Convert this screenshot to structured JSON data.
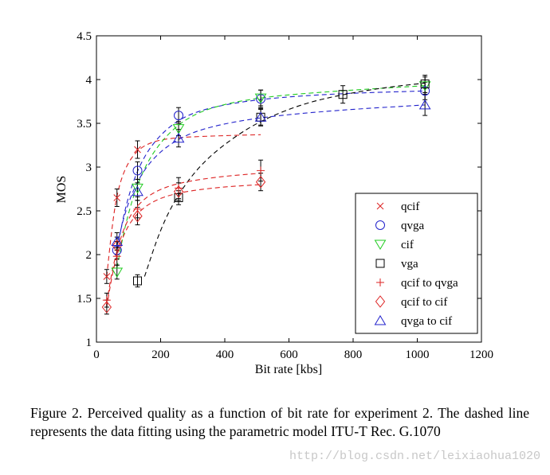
{
  "chart_data": {
    "type": "scatter",
    "title": "",
    "xlabel": "Bit rate [kbs]",
    "ylabel": "MOS",
    "xlim": [
      0,
      1200
    ],
    "ylim": [
      1,
      4.5
    ],
    "xticks": [
      0,
      200,
      400,
      600,
      800,
      1000,
      1200
    ],
    "yticks": [
      1,
      1.5,
      2,
      2.5,
      3,
      3.5,
      4,
      4.5
    ],
    "xtick_labels": [
      "0",
      "200",
      "400",
      "600",
      "800",
      "1000",
      "1200"
    ],
    "ytick_labels": [
      "1",
      "1.5",
      "2",
      "2.5",
      "3",
      "3.5",
      "4",
      "4.5"
    ],
    "grid": false,
    "legend_position": "bottom-right",
    "series": [
      {
        "name": "qcif",
        "marker": "x",
        "color": "#dd2222",
        "points": [
          {
            "x": 32,
            "y": 1.75,
            "err": 0.08
          },
          {
            "x": 64,
            "y": 2.65,
            "err": 0.1
          },
          {
            "x": 128,
            "y": 3.2,
            "err": 0.1
          }
        ],
        "fit": [
          {
            "x": 32,
            "y": 1.75
          },
          {
            "x": 48,
            "y": 2.3
          },
          {
            "x": 64,
            "y": 2.7
          },
          {
            "x": 90,
            "y": 3.0
          },
          {
            "x": 128,
            "y": 3.2
          },
          {
            "x": 180,
            "y": 3.3
          },
          {
            "x": 256,
            "y": 3.34
          },
          {
            "x": 400,
            "y": 3.36
          },
          {
            "x": 512,
            "y": 3.37
          }
        ]
      },
      {
        "name": "qvga",
        "marker": "o",
        "color": "#2222cc",
        "points": [
          {
            "x": 64,
            "y": 2.05,
            "err": 0.1
          },
          {
            "x": 128,
            "y": 2.96,
            "err": 0.1
          },
          {
            "x": 256,
            "y": 3.59,
            "err": 0.09
          },
          {
            "x": 512,
            "y": 3.78,
            "err": 0.1
          },
          {
            "x": 1024,
            "y": 3.87,
            "err": 0.1
          }
        ],
        "fit": [
          {
            "x": 64,
            "y": 2.05
          },
          {
            "x": 90,
            "y": 2.55
          },
          {
            "x": 128,
            "y": 2.98
          },
          {
            "x": 180,
            "y": 3.3
          },
          {
            "x": 256,
            "y": 3.55
          },
          {
            "x": 350,
            "y": 3.68
          },
          {
            "x": 512,
            "y": 3.78
          },
          {
            "x": 750,
            "y": 3.84
          },
          {
            "x": 1024,
            "y": 3.87
          }
        ]
      },
      {
        "name": "cif",
        "marker": "v",
        "color": "#22cc22",
        "points": [
          {
            "x": 64,
            "y": 1.8,
            "err": 0.08
          },
          {
            "x": 128,
            "y": 2.76,
            "err": 0.1
          },
          {
            "x": 256,
            "y": 3.44,
            "err": 0.08
          },
          {
            "x": 512,
            "y": 3.79,
            "err": 0.09
          },
          {
            "x": 1024,
            "y": 3.93,
            "err": 0.1
          }
        ],
        "fit": [
          {
            "x": 64,
            "y": 1.85
          },
          {
            "x": 90,
            "y": 2.35
          },
          {
            "x": 128,
            "y": 2.82
          },
          {
            "x": 180,
            "y": 3.2
          },
          {
            "x": 256,
            "y": 3.5
          },
          {
            "x": 350,
            "y": 3.68
          },
          {
            "x": 512,
            "y": 3.8
          },
          {
            "x": 750,
            "y": 3.87
          },
          {
            "x": 1024,
            "y": 3.93
          }
        ]
      },
      {
        "name": "vga",
        "marker": "s",
        "color": "#000000",
        "points": [
          {
            "x": 128,
            "y": 1.7,
            "err": 0.07
          },
          {
            "x": 256,
            "y": 2.65,
            "err": 0.08
          },
          {
            "x": 512,
            "y": 3.57,
            "err": 0.09
          },
          {
            "x": 768,
            "y": 3.83,
            "err": 0.1
          },
          {
            "x": 1024,
            "y": 3.95,
            "err": 0.1
          }
        ],
        "fit": [
          {
            "x": 150,
            "y": 1.75
          },
          {
            "x": 200,
            "y": 2.3
          },
          {
            "x": 256,
            "y": 2.7
          },
          {
            "x": 330,
            "y": 3.05
          },
          {
            "x": 420,
            "y": 3.32
          },
          {
            "x": 512,
            "y": 3.53
          },
          {
            "x": 640,
            "y": 3.72
          },
          {
            "x": 768,
            "y": 3.83
          },
          {
            "x": 900,
            "y": 3.91
          },
          {
            "x": 1024,
            "y": 3.96
          }
        ]
      },
      {
        "name": "qcif to qvga",
        "marker": "+",
        "color": "#dd2222",
        "points": [
          {
            "x": 32,
            "y": 1.48,
            "err": 0.08
          },
          {
            "x": 64,
            "y": 1.98,
            "err": 0.1
          },
          {
            "x": 128,
            "y": 2.52,
            "err": 0.1
          },
          {
            "x": 256,
            "y": 2.76,
            "err": 0.12
          },
          {
            "x": 512,
            "y": 2.96,
            "err": 0.12
          }
        ],
        "fit": [
          {
            "x": 32,
            "y": 1.45
          },
          {
            "x": 48,
            "y": 1.8
          },
          {
            "x": 64,
            "y": 2.05
          },
          {
            "x": 90,
            "y": 2.35
          },
          {
            "x": 128,
            "y": 2.57
          },
          {
            "x": 180,
            "y": 2.72
          },
          {
            "x": 256,
            "y": 2.82
          },
          {
            "x": 380,
            "y": 2.89
          },
          {
            "x": 512,
            "y": 2.93
          }
        ]
      },
      {
        "name": "qcif to cif",
        "marker": "d",
        "color": "#dd2222",
        "points": [
          {
            "x": 32,
            "y": 1.4,
            "err": 0.08
          },
          {
            "x": 64,
            "y": 2.1,
            "err": 0.1
          },
          {
            "x": 128,
            "y": 2.44,
            "err": 0.1
          },
          {
            "x": 256,
            "y": 2.72,
            "err": 0.1
          },
          {
            "x": 512,
            "y": 2.83,
            "err": 0.1
          }
        ],
        "fit": [
          {
            "x": 32,
            "y": 1.4
          },
          {
            "x": 48,
            "y": 1.75
          },
          {
            "x": 64,
            "y": 2.0
          },
          {
            "x": 90,
            "y": 2.28
          },
          {
            "x": 128,
            "y": 2.48
          },
          {
            "x": 180,
            "y": 2.62
          },
          {
            "x": 256,
            "y": 2.71
          },
          {
            "x": 380,
            "y": 2.77
          },
          {
            "x": 512,
            "y": 2.8
          }
        ]
      },
      {
        "name": "qvga to cif",
        "marker": "^",
        "color": "#2222cc",
        "points": [
          {
            "x": 64,
            "y": 2.15,
            "err": 0.1
          },
          {
            "x": 128,
            "y": 2.72,
            "err": 0.1
          },
          {
            "x": 256,
            "y": 3.33,
            "err": 0.1
          },
          {
            "x": 512,
            "y": 3.57,
            "err": 0.1
          },
          {
            "x": 1024,
            "y": 3.71,
            "err": 0.12
          }
        ],
        "fit": [
          {
            "x": 64,
            "y": 2.1
          },
          {
            "x": 90,
            "y": 2.5
          },
          {
            "x": 128,
            "y": 2.85
          },
          {
            "x": 180,
            "y": 3.12
          },
          {
            "x": 256,
            "y": 3.33
          },
          {
            "x": 350,
            "y": 3.46
          },
          {
            "x": 512,
            "y": 3.57
          },
          {
            "x": 750,
            "y": 3.65
          },
          {
            "x": 1024,
            "y": 3.71
          }
        ]
      }
    ]
  },
  "caption": "Figure 2.   Perceived quality as a function of bit rate for experiment 2. The dashed line represents the data fitting using the parametric model ITU-T Rec. G.1070",
  "watermark": "http://blog.csdn.net/leixiaohua1020"
}
